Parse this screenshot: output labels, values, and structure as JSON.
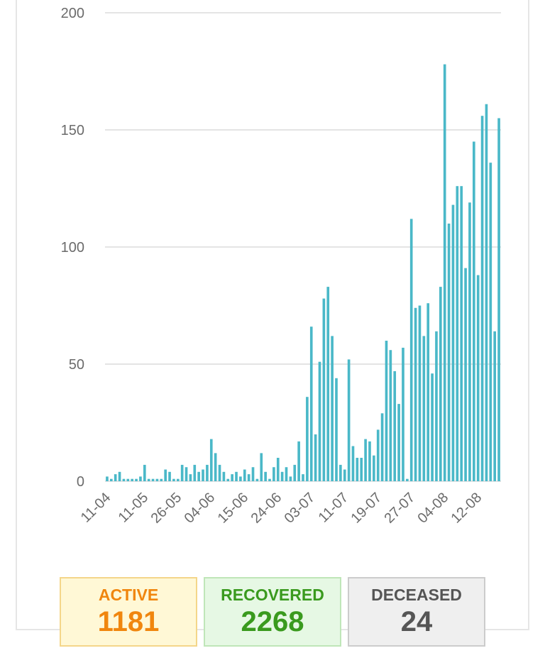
{
  "chart_data": {
    "type": "bar",
    "title": "",
    "xlabel": "",
    "ylabel": "",
    "ylim": [
      0,
      200
    ],
    "yticks": [
      0,
      50,
      100,
      150,
      200
    ],
    "x_tick_labels": [
      {
        "label": "11-04",
        "index": 0
      },
      {
        "label": "11-05",
        "index": 9
      },
      {
        "label": "26-05",
        "index": 17
      },
      {
        "label": "04-06",
        "index": 25
      },
      {
        "label": "15-06",
        "index": 33
      },
      {
        "label": "24-06",
        "index": 41
      },
      {
        "label": "03-07",
        "index": 49
      },
      {
        "label": "11-07",
        "index": 57
      },
      {
        "label": "19-07",
        "index": 65
      },
      {
        "label": "27-07",
        "index": 73
      },
      {
        "label": "04-08",
        "index": 81
      },
      {
        "label": "12-08",
        "index": 89
      }
    ],
    "values": [
      2,
      1,
      3,
      4,
      1,
      1,
      1,
      1,
      2,
      7,
      1,
      1,
      1,
      1,
      5,
      4,
      1,
      1,
      7,
      6,
      3,
      7,
      4,
      5,
      7,
      18,
      12,
      7,
      4,
      1,
      3,
      4,
      2,
      5,
      3,
      6,
      1,
      12,
      4,
      1,
      6,
      10,
      4,
      6,
      2,
      7,
      17,
      3,
      36,
      66,
      20,
      51,
      78,
      83,
      62,
      44,
      7,
      5,
      52,
      15,
      10,
      10,
      18,
      17,
      11,
      22,
      29,
      60,
      56,
      47,
      33,
      57,
      1,
      112,
      74,
      75,
      62,
      76,
      46,
      64,
      83,
      178,
      110,
      118,
      126,
      126,
      91,
      119,
      145,
      88,
      156,
      161,
      136,
      64,
      155
    ]
  },
  "stats": [
    {
      "label": "ACTIVE",
      "value": "1181"
    },
    {
      "label": "RECOVERED",
      "value": "2268"
    },
    {
      "label": "DECEASED",
      "value": "24"
    }
  ]
}
